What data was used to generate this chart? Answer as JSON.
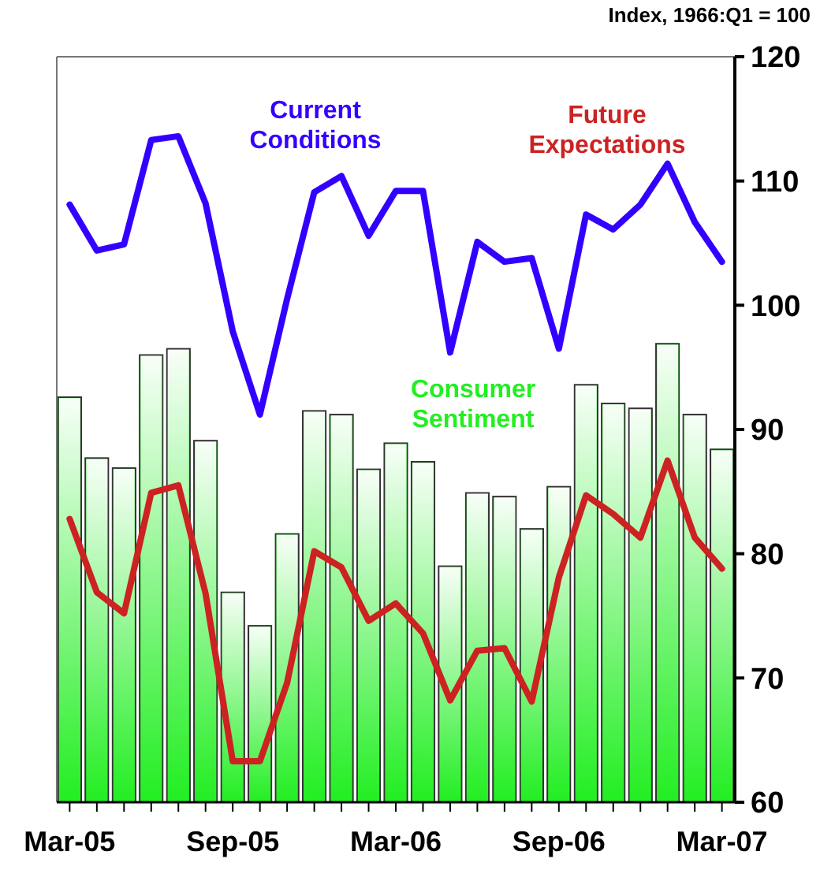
{
  "chart_data": {
    "type": "bar",
    "ylabel": "Index, 1966:Q1 = 100",
    "categories": [
      "Mar-05",
      null,
      null,
      null,
      null,
      null,
      "Sep-05",
      null,
      null,
      null,
      null,
      null,
      "Mar-06",
      null,
      null,
      null,
      null,
      null,
      "Sep-06",
      null,
      null,
      null,
      null,
      null,
      "Mar-07"
    ],
    "series": [
      {
        "name": "Consumer Sentiment",
        "color": "#22ee22",
        "values": [
          92.6,
          87.7,
          86.9,
          96.0,
          96.5,
          89.1,
          76.9,
          74.2,
          81.6,
          91.5,
          91.2,
          86.8,
          88.9,
          87.4,
          79.0,
          84.9,
          84.6,
          82.0,
          85.4,
          93.6,
          92.1,
          91.7,
          96.9,
          91.2,
          88.4
        ]
      },
      {
        "name": "Current Conditions",
        "type": "line",
        "color": "#3300ff",
        "values": [
          108.1,
          104.4,
          104.9,
          113.3,
          113.6,
          108.2,
          97.9,
          91.2,
          100.5,
          109.1,
          110.4,
          105.6,
          109.2,
          109.2,
          96.2,
          105.1,
          103.5,
          103.8,
          96.5,
          107.3,
          106.1,
          108.1,
          111.4,
          106.7,
          103.5
        ]
      },
      {
        "name": "Future Expectations",
        "type": "line",
        "color": "#cc2222",
        "values": [
          82.8,
          76.9,
          75.2,
          84.9,
          85.5,
          76.8,
          63.3,
          63.3,
          69.6,
          80.2,
          78.9,
          74.6,
          76.0,
          73.6,
          68.2,
          72.2,
          72.4,
          68.1,
          78.1,
          84.7,
          83.2,
          81.3,
          87.5,
          81.3,
          78.8
        ]
      }
    ],
    "ylim": [
      60,
      120
    ],
    "yticks": [
      60,
      70,
      80,
      90,
      100,
      110,
      120
    ],
    "grid": false,
    "legend": false
  }
}
